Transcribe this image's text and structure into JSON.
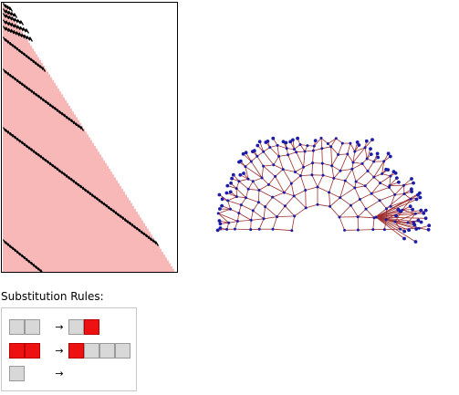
{
  "title": "Substitution Rules:",
  "colors": {
    "cell_red": "#ee1111",
    "cell_gray": "#d8d8d8",
    "stripe": "#f07070",
    "trail": "#000000",
    "node": "#1c1ca8",
    "edge": "#a03030"
  },
  "rules": [
    {
      "left": [
        "gray",
        "gray"
      ],
      "arrow": "→",
      "right": [
        "gray",
        "red"
      ]
    },
    {
      "left": [
        "red",
        "red"
      ],
      "arrow": "→",
      "right": [
        "red",
        "gray",
        "gray",
        "gray"
      ]
    },
    {
      "left": [
        "gray"
      ],
      "arrow": "→",
      "right": []
    }
  ]
}
